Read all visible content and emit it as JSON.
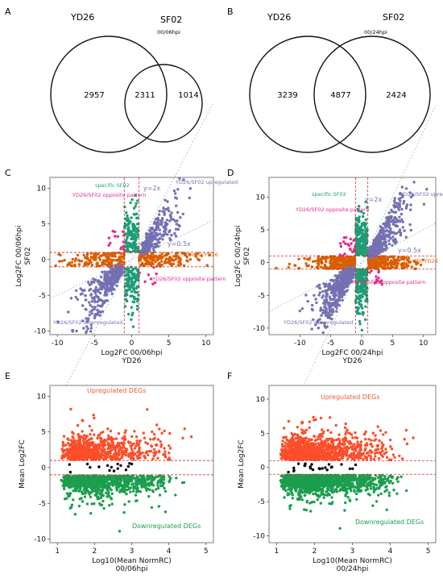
{
  "chart_data": [
    {
      "panel": "A",
      "type": "venn",
      "sets": [
        "YD26",
        "SF02"
      ],
      "timepoint": "00/06hpi",
      "left_only": 2957,
      "overlap": 2311,
      "right_only": 1014
    },
    {
      "panel": "B",
      "type": "venn",
      "sets": [
        "YD26",
        "SF02"
      ],
      "timepoint": "00/24hpi",
      "left_only": 3239,
      "overlap": 4877,
      "right_only": 2424
    },
    {
      "panel": "C",
      "type": "scatter",
      "xlabel_lines": [
        "Log2FC 00/06hpi",
        "YD26"
      ],
      "ylabel_lines": [
        "Log2FC 00/06hpi",
        "SF02"
      ],
      "xlim": [
        -11,
        11
      ],
      "ylim": [
        -10.5,
        11.5
      ],
      "xticks": [
        -10,
        -5,
        0,
        5,
        10
      ],
      "yticks": [
        -10,
        -5,
        0,
        5,
        10
      ],
      "threshold": 1,
      "annotations": [
        "specific SF02",
        "YD26/SF02 opposite pattern",
        "y=2x",
        "YD26/SF02 upregulated",
        "y=0.5x",
        "specific YD26",
        "YD26/SF02 opposite pattern",
        "YD26/SF02 downregulated"
      ],
      "colors": {
        "shared": "#7570b3",
        "opposite": "#e7298a",
        "sf02_specific": "#1b9e77",
        "yd26_specific": "#d95f02"
      }
    },
    {
      "panel": "D",
      "type": "scatter",
      "xlabel_lines": [
        "Log2FC 00/24hpi",
        "YD26"
      ],
      "ylabel_lines": [
        "Log2FC 00/24hpi",
        "SF02"
      ],
      "xlim": [
        -15,
        12
      ],
      "ylim": [
        -11,
        13
      ],
      "xticks": [
        -10,
        -5,
        0,
        5,
        10
      ],
      "yticks": [
        -10,
        -5,
        0,
        5,
        10
      ],
      "threshold": 1,
      "annotations": [
        "specific SF02",
        "y=2x",
        "YD26/SF02 opposite pattern",
        "YD26/SF02 upregulated",
        "y=0.5x",
        "specific YD26",
        "YD26/SF02 opposite pattern",
        "YD26/SF02 downregulated"
      ],
      "colors": {
        "shared": "#7570b3",
        "opposite": "#e7298a",
        "sf02_specific": "#1b9e77",
        "yd26_specific": "#d95f02"
      }
    },
    {
      "panel": "E",
      "type": "scatter",
      "xlabel_lines": [
        "Log10(Mean NormRC)",
        "00/06hpi"
      ],
      "ylabel_lines": [
        "Mean Log2FC"
      ],
      "xlim": [
        0.8,
        5.2
      ],
      "ylim": [
        -10.5,
        11.5
      ],
      "xticks": [
        1,
        2,
        3,
        4,
        5
      ],
      "yticks": [
        -10,
        -5,
        0,
        5,
        10
      ],
      "threshold": 1,
      "annotations": [
        "Upregulated DEGs",
        "Downregulated DEGs"
      ],
      "colors": {
        "up": "#fc4e2a",
        "down": "#1b9e4e",
        "ns": "#000000"
      }
    },
    {
      "panel": "F",
      "type": "scatter",
      "xlabel_lines": [
        "Log10(Mean NormRC)",
        "00/24hpi"
      ],
      "ylabel_lines": [
        "Mean Log2FC"
      ],
      "xlim": [
        0.8,
        5.2
      ],
      "ylim": [
        -11,
        12
      ],
      "xticks": [
        1,
        2,
        3,
        4,
        5
      ],
      "yticks": [
        -10,
        -5,
        0,
        5,
        10
      ],
      "threshold": 1,
      "annotations": [
        "Upregulated DEGs",
        "Downregulated DEGs"
      ],
      "colors": {
        "up": "#fc4e2a",
        "down": "#1b9e4e",
        "ns": "#000000"
      }
    }
  ]
}
